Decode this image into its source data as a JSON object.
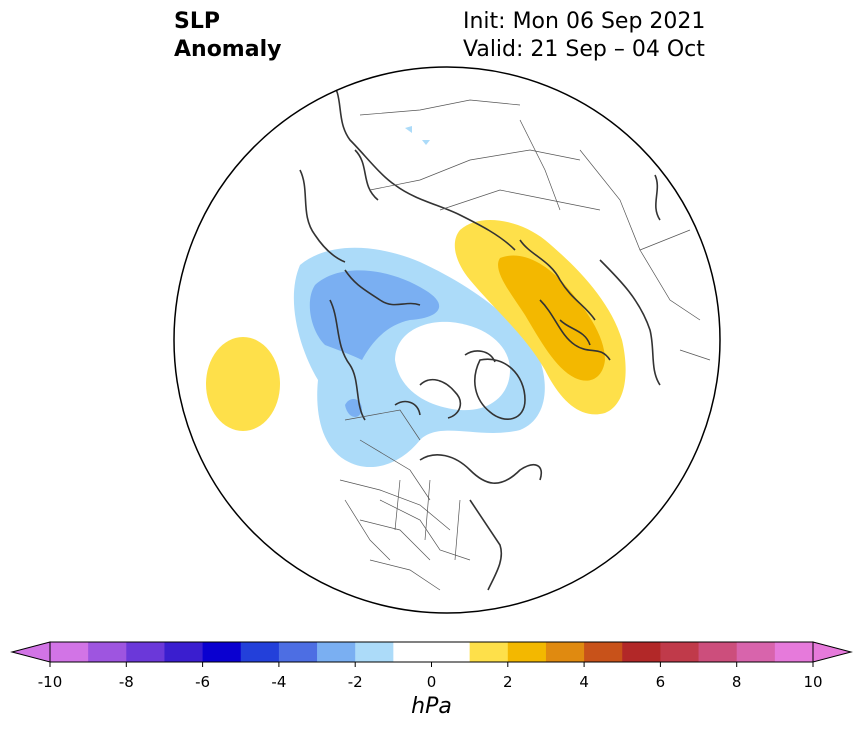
{
  "title": {
    "left_line1": "SLP",
    "left_line2": "Anomaly",
    "right_line1": "Init: Mon 06 Sep 2021",
    "right_line2": "Valid: 21 Sep – 04 Oct"
  },
  "colorbar": {
    "units": "hPa",
    "ticks": [
      "-10",
      "-8",
      "-6",
      "-4",
      "-2",
      "0",
      "2",
      "4",
      "6",
      "8",
      "10"
    ],
    "colors": [
      "#d274e6",
      "#9e55e0",
      "#6b38d9",
      "#3a1ecf",
      "#0a00d0",
      "#2340da",
      "#4d6ee3",
      "#7aaff2",
      "#acdbf9",
      "#ffffff",
      "#ffffff",
      "#fee04a",
      "#f3b800",
      "#e08a10",
      "#c8521a",
      "#b22828",
      "#c03a4a",
      "#cc4e7c",
      "#d864ac",
      "#e67adb"
    ],
    "extend_low_color": "#d274e6",
    "extend_high_color": "#e67adb"
  },
  "map": {
    "projection": "north polar stereographic",
    "anomaly_regions": [
      {
        "label": "negative -1 to -2 hPa",
        "color": "#acdbf9"
      },
      {
        "label": "negative -2 to -3 hPa",
        "color": "#7aaff2"
      },
      {
        "label": "positive 1 to 2 hPa",
        "color": "#fee04a"
      },
      {
        "label": "positive 2 to 3 hPa",
        "color": "#f3b800"
      }
    ],
    "coastline_color": "#333333"
  }
}
